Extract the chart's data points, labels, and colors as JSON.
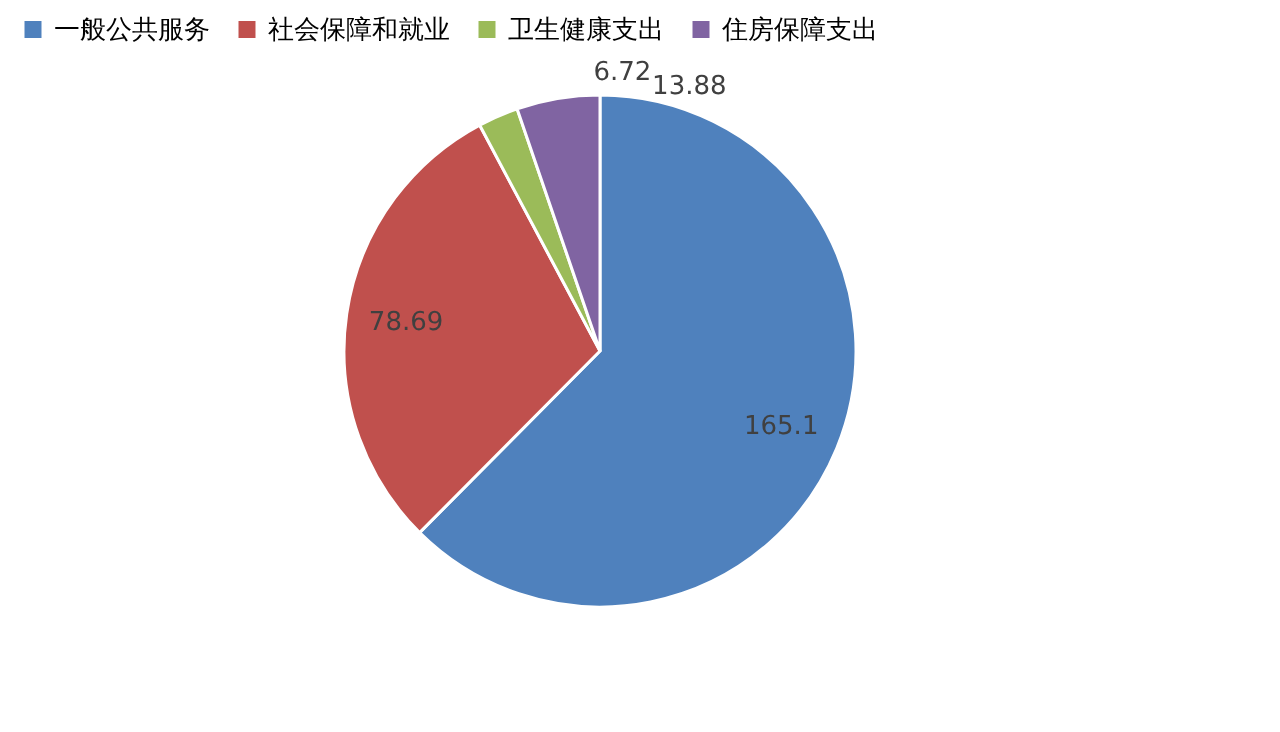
{
  "chart_data": {
    "type": "pie",
    "categories": [
      "一般公共服务",
      "社会保障和就业",
      "卫生健康支出",
      "住房保障支出"
    ],
    "values": [
      165.1,
      78.69,
      6.72,
      13.88
    ],
    "colors": [
      "#4f81bd",
      "#c0504d",
      "#9bbb59",
      "#8064a2"
    ],
    "data_labels": true,
    "legend": "top"
  }
}
